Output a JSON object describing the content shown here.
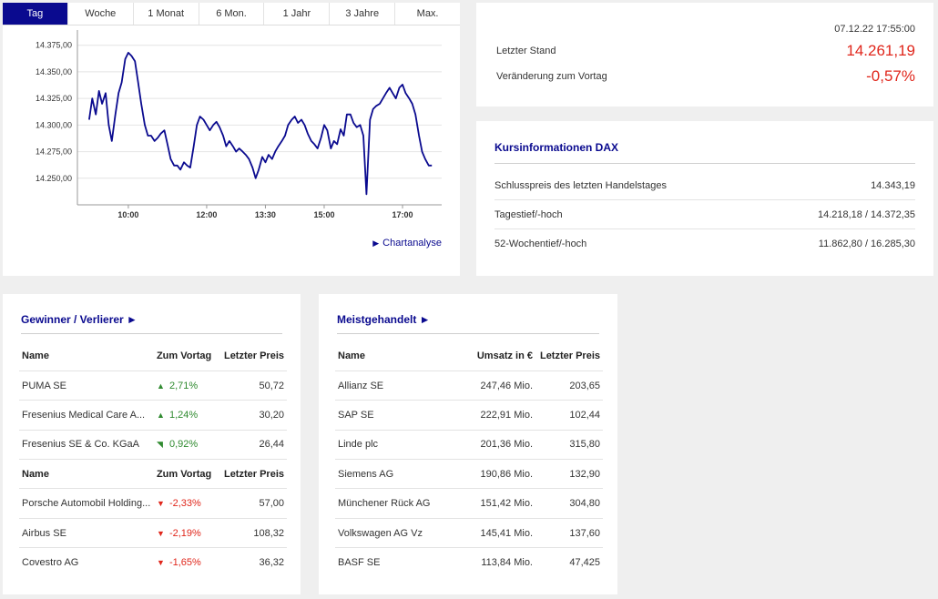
{
  "tabs": [
    "Tag",
    "Woche",
    "1 Monat",
    "6 Mon.",
    "1 Jahr",
    "3 Jahre",
    "Max."
  ],
  "chart_link": "Chartanalyse",
  "stand": {
    "datetime": "07.12.22 17:55:00",
    "letzter_stand_label": "Letzter Stand",
    "letzter_stand_value": "14.261,19",
    "veraenderung_label": "Veränderung zum Vortag",
    "veraenderung_value": "-0,57%"
  },
  "kurs": {
    "title": "Kursinformationen DAX",
    "rows": [
      {
        "label": "Schlusspreis des letzten Handelstages",
        "value": "14.343,19"
      },
      {
        "label": "Tagestief/-hoch",
        "value": "14.218,18 / 14.372,35"
      },
      {
        "label": "52-Wochentief/-hoch",
        "value": "11.862,80 / 16.285,30"
      }
    ]
  },
  "gewinner": {
    "title": "Gewinner / Verlierer ►",
    "headers": {
      "name": "Name",
      "change": "Zum Vortag",
      "price": "Letzter Preis"
    },
    "winners": [
      {
        "name": "PUMA SE",
        "change": "2,71%",
        "price": "50,72",
        "arrow": "▲"
      },
      {
        "name": "Fresenius Medical Care A...",
        "change": "1,24%",
        "price": "30,20",
        "arrow": "▲"
      },
      {
        "name": "Fresenius SE & Co. KGaA",
        "change": "0,92%",
        "price": "26,44",
        "arrow": "◥"
      }
    ],
    "losers": [
      {
        "name": "Porsche Automobil Holding...",
        "change": "-2,33%",
        "price": "57,00",
        "arrow": "▼"
      },
      {
        "name": "Airbus SE",
        "change": "-2,19%",
        "price": "108,32",
        "arrow": "▼"
      },
      {
        "name": "Covestro AG",
        "change": "-1,65%",
        "price": "36,32",
        "arrow": "▼"
      }
    ]
  },
  "meist": {
    "title": "Meistgehandelt ►",
    "headers": {
      "name": "Name",
      "umsatz": "Umsatz in €",
      "price": "Letzter Preis"
    },
    "rows": [
      {
        "name": "Allianz SE",
        "umsatz": "247,46 Mio.",
        "price": "203,65"
      },
      {
        "name": "SAP SE",
        "umsatz": "222,91 Mio.",
        "price": "102,44"
      },
      {
        "name": "Linde plc",
        "umsatz": "201,36 Mio.",
        "price": "315,80"
      },
      {
        "name": "Siemens AG",
        "umsatz": "190,86 Mio.",
        "price": "132,90"
      },
      {
        "name": "Münchener Rück AG",
        "umsatz": "151,42 Mio.",
        "price": "304,80"
      },
      {
        "name": "Volkswagen AG Vz",
        "umsatz": "145,41 Mio.",
        "price": "137,60"
      },
      {
        "name": "BASF SE",
        "umsatz": "113,84 Mio.",
        "price": "47,425"
      }
    ]
  },
  "colors": {
    "accent": "#0a0a8f",
    "negative": "#e0261b",
    "positive": "#2f8a2f"
  },
  "chart_data": {
    "type": "line",
    "ylim": [
      14225,
      14385
    ],
    "yticks": [
      14250,
      14275,
      14300,
      14325,
      14350,
      14375
    ],
    "ytick_labels": [
      "14.250,00",
      "14.275,00",
      "14.300,00",
      "14.325,00",
      "14.350,00",
      "14.375,00"
    ],
    "xlim": [
      8.7,
      18.0
    ],
    "xticks": [
      10.0,
      12.0,
      13.5,
      15.0,
      17.0
    ],
    "xtick_labels": [
      "10:00",
      "12:00",
      "13:30",
      "15:00",
      "17:00"
    ],
    "series": [
      {
        "color": "#0a0a8f",
        "x": [
          9.0,
          9.08,
          9.17,
          9.25,
          9.33,
          9.42,
          9.5,
          9.58,
          9.67,
          9.75,
          9.83,
          9.92,
          10.0,
          10.08,
          10.17,
          10.25,
          10.33,
          10.42,
          10.5,
          10.58,
          10.67,
          10.75,
          10.83,
          10.92,
          11.0,
          11.08,
          11.17,
          11.25,
          11.33,
          11.42,
          11.5,
          11.58,
          11.67,
          11.75,
          11.83,
          11.92,
          12.0,
          12.08,
          12.17,
          12.25,
          12.33,
          12.42,
          12.5,
          12.58,
          12.67,
          12.75,
          12.83,
          12.92,
          13.0,
          13.08,
          13.17,
          13.25,
          13.33,
          13.42,
          13.5,
          13.58,
          13.67,
          13.75,
          13.83,
          13.92,
          14.0,
          14.08,
          14.17,
          14.25,
          14.33,
          14.42,
          14.5,
          14.58,
          14.67,
          14.75,
          14.83,
          14.92,
          15.0,
          15.08,
          15.17,
          15.25,
          15.33,
          15.42,
          15.5,
          15.58,
          15.67,
          15.75,
          15.83,
          15.92,
          16.0,
          16.08,
          16.17,
          16.25,
          16.33,
          16.42,
          16.5,
          16.58,
          16.67,
          16.75,
          16.83,
          16.92,
          17.0,
          17.08,
          17.17,
          17.25,
          17.33,
          17.42,
          17.5,
          17.58,
          17.67,
          17.75
        ],
        "y": [
          14305,
          14325,
          14310,
          14332,
          14320,
          14330,
          14300,
          14285,
          14310,
          14330,
          14340,
          14362,
          14368,
          14365,
          14360,
          14340,
          14320,
          14300,
          14290,
          14290,
          14285,
          14288,
          14292,
          14295,
          14282,
          14268,
          14262,
          14262,
          14258,
          14265,
          14262,
          14260,
          14280,
          14300,
          14308,
          14305,
          14300,
          14295,
          14300,
          14303,
          14298,
          14290,
          14280,
          14285,
          14280,
          14275,
          14278,
          14275,
          14272,
          14268,
          14260,
          14250,
          14258,
          14270,
          14265,
          14272,
          14268,
          14275,
          14280,
          14285,
          14290,
          14300,
          14305,
          14308,
          14302,
          14305,
          14300,
          14292,
          14285,
          14282,
          14278,
          14288,
          14300,
          14295,
          14278,
          14285,
          14282,
          14296,
          14290,
          14310,
          14310,
          14302,
          14298,
          14300,
          14290,
          14235,
          14305,
          14315,
          14318,
          14320,
          14325,
          14330,
          14335,
          14330,
          14325,
          14335,
          14338,
          14330,
          14325,
          14320,
          14310,
          14290,
          14275,
          14268,
          14262,
          14262
        ]
      }
    ]
  }
}
